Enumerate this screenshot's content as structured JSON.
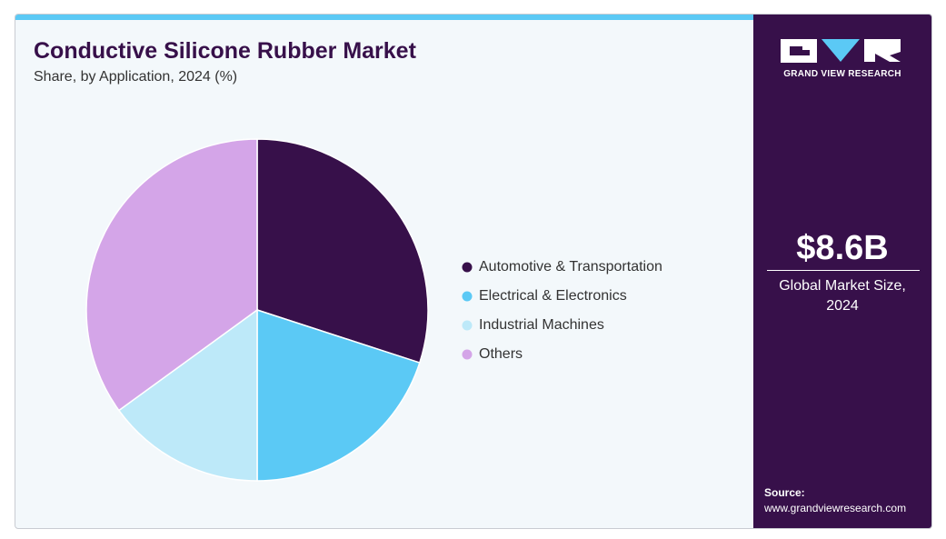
{
  "chart_data": {
    "type": "pie",
    "title": "Conductive Silicone Rubber Market",
    "subtitle": "Share, by Application, 2024 (%)",
    "categories": [
      "Automotive & Transportation",
      "Electrical & Electronics",
      "Industrial Machines",
      "Others"
    ],
    "values": [
      30,
      20,
      15,
      35
    ],
    "colors": [
      "#37104a",
      "#5bc9f5",
      "#bde9f9",
      "#d4a5e8"
    ]
  },
  "sidebar": {
    "brand": "GRAND VIEW RESEARCH",
    "market_size": "$8.6B",
    "market_label": "Global Market Size, 2024",
    "source_label": "Source:",
    "source_url": "www.grandviewresearch.com"
  }
}
